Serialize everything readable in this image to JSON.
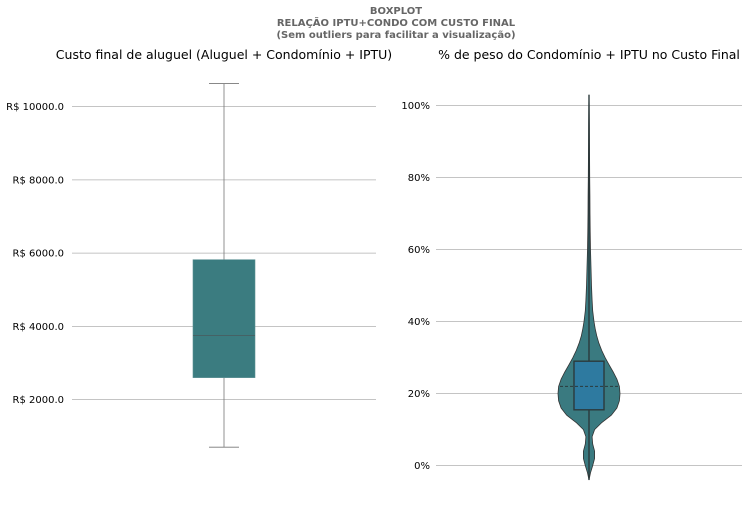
{
  "suptitle": [
    "BOXPLOT",
    "RELAÇÃO IPTU+CONDO COM CUSTO FINAL",
    "(Sem outliers para facilitar a visualização)"
  ],
  "colors": {
    "box": "#3b7c80",
    "violin": "#3a7a80",
    "inner_box": "#2e7aa0",
    "grid": "#b0b0b0",
    "whisker": "#777777",
    "violin_edge": "#333333"
  },
  "chart_data": [
    {
      "type": "box",
      "title": "Custo final de aluguel (Aluguel + Condomínio + IPTU)",
      "ylim": [
        -250,
        11000
      ],
      "yticks": [
        2000,
        4000,
        6000,
        8000,
        10000
      ],
      "ytick_labels": [
        "R$ 2000.0",
        "R$ 4000.0",
        "R$ 6000.0",
        "R$ 8000.0",
        "R$ 10000.0"
      ],
      "grid": "horizontal",
      "stats": {
        "whislo": 700,
        "q1": 2600,
        "median": 3750,
        "q3": 5820,
        "whishi": 10630
      }
    },
    {
      "type": "violin",
      "title": "% de peso do Condomínio + IPTU no Custo Final",
      "ylim": [
        -4,
        106
      ],
      "yticks": [
        0,
        20,
        40,
        60,
        80,
        100
      ],
      "ytick_labels": [
        "0%",
        "20%",
        "40%",
        "60%",
        "80%",
        "100%"
      ],
      "grid": "horizontal",
      "stats": {
        "min": -4,
        "q1": 15.5,
        "median": 22,
        "q3": 29,
        "max": 103
      },
      "density": [
        [
          -4,
          0.0
        ],
        [
          -2,
          0.05
        ],
        [
          0,
          0.12
        ],
        [
          2,
          0.18
        ],
        [
          4,
          0.18
        ],
        [
          6,
          0.12
        ],
        [
          8,
          0.1
        ],
        [
          10,
          0.18
        ],
        [
          12,
          0.42
        ],
        [
          14,
          0.72
        ],
        [
          16,
          0.9
        ],
        [
          18,
          0.98
        ],
        [
          20,
          1.0
        ],
        [
          22,
          0.98
        ],
        [
          24,
          0.9
        ],
        [
          26,
          0.78
        ],
        [
          28,
          0.65
        ],
        [
          30,
          0.52
        ],
        [
          32,
          0.41
        ],
        [
          34,
          0.32
        ],
        [
          36,
          0.25
        ],
        [
          38,
          0.2
        ],
        [
          40,
          0.16
        ],
        [
          43,
          0.12
        ],
        [
          46,
          0.1
        ],
        [
          50,
          0.08
        ],
        [
          55,
          0.065
        ],
        [
          60,
          0.05
        ],
        [
          65,
          0.04
        ],
        [
          70,
          0.033
        ],
        [
          75,
          0.028
        ],
        [
          80,
          0.024
        ],
        [
          85,
          0.02
        ],
        [
          90,
          0.016
        ],
        [
          95,
          0.012
        ],
        [
          100,
          0.008
        ],
        [
          103,
          0.0
        ]
      ]
    }
  ]
}
